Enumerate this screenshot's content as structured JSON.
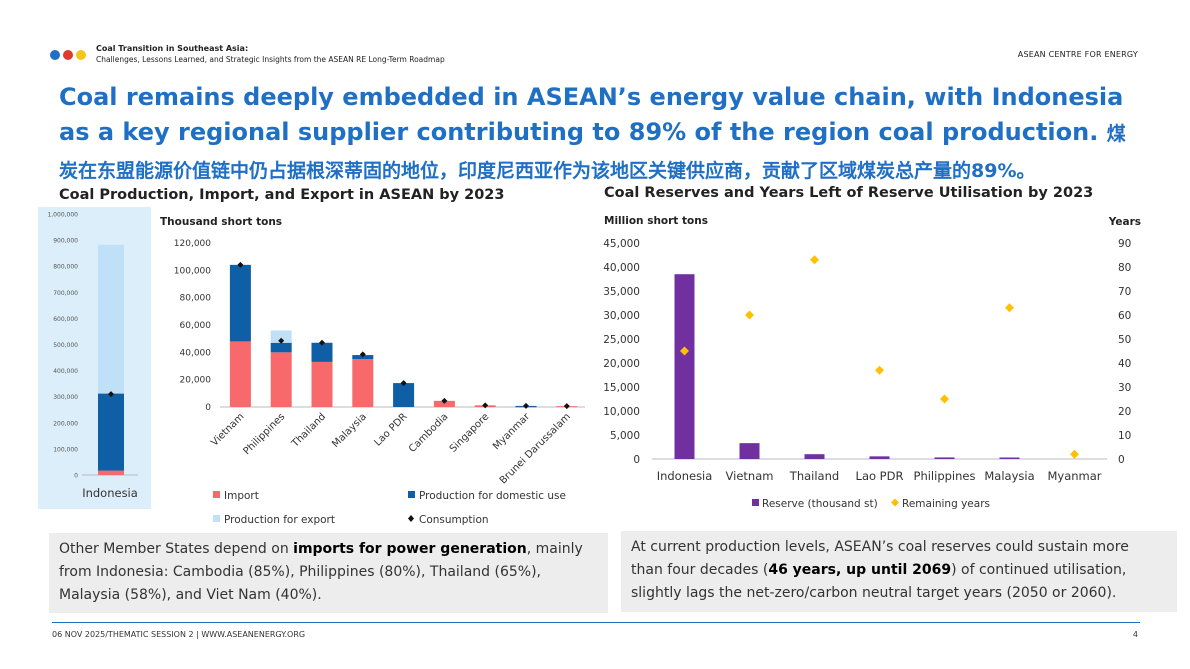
{
  "header": {
    "deck_title": "Coal Transition in Southeast Asia:",
    "deck_subtitle": "Challenges, Lessons Learned, and Strategic Insights from the ASEAN RE Long-Term Roadmap",
    "org": "ASEAN CENTRE FOR ENERGY",
    "dot_colors": [
      "#1f6fc5",
      "#e03a2f",
      "#f5c518"
    ]
  },
  "headline": {
    "en": "Coal remains deeply embedded in ASEAN’s energy value chain, with Indonesia as a key regional supplier contributing to 89% of the region coal production.",
    "cn": "煤炭在东盟能源价值链中仍占据根深蒂固的地位，印度尼西亚作为该地区关键供应商，贡献了区域煤炭总产量的89%。"
  },
  "left_chart_title": "Coal Production, Import, and Export in ASEAN by 2023",
  "right_chart_title": "Coal Reserves and Years Left of Reserve Utilisation by 2023",
  "colors": {
    "import": "#f8696b",
    "domestic": "#0f5fa6",
    "export": "#bfe0f7",
    "consumption": "#111111",
    "reserve": "#7030a0",
    "years": "#ffc000",
    "accent": "#1f6fc5"
  },
  "chart_data": [
    {
      "type": "bar",
      "stacked": true,
      "categories": [
        "Indonesia"
      ],
      "ylim": [
        0,
        1000000
      ],
      "yticks": [
        "0",
        "100,000",
        "200,000",
        "300,000",
        "400,000",
        "500,000",
        "600,000",
        "700,000",
        "800,000",
        "900,000",
        "1,000,000"
      ],
      "series": [
        {
          "name": "Import",
          "values": [
            17000
          ]
        },
        {
          "name": "Production for domestic use",
          "values": [
            295000
          ]
        },
        {
          "name": "Production for export",
          "values": [
            570000
          ]
        },
        {
          "name": "Consumption",
          "kind": "marker",
          "values": [
            310000
          ]
        }
      ]
    },
    {
      "type": "bar",
      "stacked": true,
      "ylabel": "Thousand short tons",
      "categories": [
        "Vietnam",
        "Philippines",
        "Thailand",
        "Malaysia",
        "Lao PDR",
        "Cambodia",
        "Singapore",
        "Myanmar",
        "Brunei Darussalam"
      ],
      "ylim": [
        0,
        120000
      ],
      "yticks": [
        "0",
        "20,000",
        "40,000",
        "60,000",
        "80,000",
        "100,000",
        "120,000"
      ],
      "series": [
        {
          "name": "Import",
          "values": [
            48000,
            40000,
            33000,
            35000,
            0,
            4500,
            1200,
            300,
            600
          ]
        },
        {
          "name": "Production for domestic use",
          "values": [
            56000,
            7000,
            14000,
            3000,
            17500,
            0,
            0,
            500,
            0
          ]
        },
        {
          "name": "Production for export",
          "values": [
            0,
            9000,
            0,
            0,
            0,
            0,
            0,
            0,
            0
          ]
        },
        {
          "name": "Consumption",
          "kind": "marker",
          "values": [
            104000,
            48500,
            47000,
            38500,
            17500,
            4500,
            1200,
            800,
            600
          ]
        }
      ],
      "legend": "bottom"
    },
    {
      "type": "bar",
      "combo": "bar+scatter",
      "ylabel_left": "Million short tons",
      "ylabel_right": "Years",
      "categories": [
        "Indonesia",
        "Vietnam",
        "Thailand",
        "Lao PDR",
        "Philippines",
        "Malaysia",
        "Myanmar"
      ],
      "ylim_left": [
        0,
        45000
      ],
      "ylim_right": [
        0,
        90
      ],
      "yticks_left": [
        "0",
        "5,000",
        "10,000",
        "15,000",
        "20,000",
        "25,000",
        "30,000",
        "35,000",
        "40,000",
        "45,000"
      ],
      "yticks_right": [
        "0",
        "10",
        "20",
        "30",
        "40",
        "50",
        "60",
        "70",
        "80",
        "90"
      ],
      "series": [
        {
          "name": "Reserve (thousand st)",
          "axis": "left",
          "values": [
            38500,
            3300,
            1000,
            550,
            330,
            200,
            0
          ]
        },
        {
          "name": "Remaining years",
          "axis": "right",
          "kind": "marker",
          "values": [
            45,
            60,
            83,
            37,
            25,
            63,
            2
          ]
        }
      ],
      "legend": "bottom"
    }
  ],
  "notes": {
    "left": {
      "t1": "Other Member States depend on ",
      "t2": "imports for power generation",
      "t3": ", mainly from Indonesia: Cambodia (85%), Philippines (80%), Thailand (65%), Malaysia (58%), and Viet Nam (40%)."
    },
    "right": {
      "t1": "At current production levels, ASEAN’s coal reserves could sustain more than four decades (",
      "t2": "46 years, up until 2069",
      "t3": ") of continued utilisation, slightly lags the net-zero/carbon neutral target years (2050 or 2060)."
    }
  },
  "footer": {
    "left": "06 NOV 2025/THEMATIC SESSION 2 |  WWW.ASEANENERGY.ORG",
    "page": "4"
  }
}
